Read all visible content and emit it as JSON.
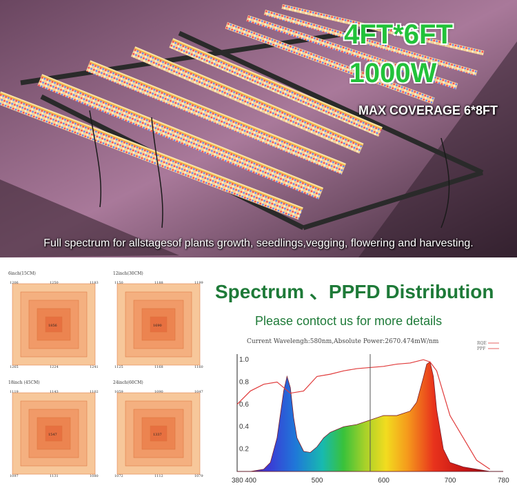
{
  "hero": {
    "title": "4FT*6FT",
    "power": "1000W",
    "coverage": "MAX COVERAGE 6*8FT",
    "caption": "Full spectrum for allstagesof plants growth, seedlings,vegging, flowering and harvesting."
  },
  "spectrum": {
    "title": "Spectrum 、PPFD Distribution",
    "subtitle": "Please contoct us for more details"
  },
  "ppfd_panels": [
    {
      "label": "6inch(15CM)",
      "corners": [
        "1206",
        "1250",
        "1183",
        "1265",
        "1224",
        "1241"
      ],
      "center": "1856"
    },
    {
      "label": "12inch(30CM)",
      "corners": [
        "1150",
        "1188",
        "1199",
        "1125",
        "1168",
        "1160"
      ],
      "center": "1690"
    },
    {
      "label": "18inch (45CM)",
      "corners": [
        "1119",
        "1143",
        "1102",
        "1097",
        "1131",
        "1080"
      ],
      "center": "1547"
    },
    {
      "label": "24inch(60CM)",
      "corners": [
        "1059",
        "1090",
        "1047",
        "1072",
        "1112",
        "1079"
      ],
      "center": "1337"
    }
  ],
  "chart_data": {
    "type": "line",
    "note": "Current Wavelengh:580nm,Absolute Power:2670.474mW/nm",
    "x_ticks": [
      "380",
      "400",
      "500",
      "600",
      "700",
      "780"
    ],
    "y_ticks": [
      "1.0",
      "0.8",
      "0.6",
      "0.4",
      "0.2"
    ],
    "xlim": [
      380,
      780
    ],
    "ylim": [
      0,
      1.05
    ],
    "legend": [
      "RQE",
      "PPF"
    ],
    "marker_x": 580,
    "spectrum": {
      "x": [
        380,
        400,
        420,
        430,
        440,
        450,
        455,
        460,
        465,
        470,
        480,
        490,
        500,
        510,
        520,
        540,
        560,
        580,
        600,
        620,
        640,
        650,
        660,
        665,
        670,
        675,
        680,
        690,
        700,
        720,
        740,
        760,
        780
      ],
      "y": [
        0.0,
        0.0,
        0.02,
        0.08,
        0.3,
        0.72,
        0.85,
        0.75,
        0.48,
        0.3,
        0.18,
        0.17,
        0.22,
        0.3,
        0.35,
        0.4,
        0.42,
        0.46,
        0.5,
        0.5,
        0.54,
        0.62,
        0.84,
        0.96,
        0.98,
        0.85,
        0.55,
        0.2,
        0.08,
        0.04,
        0.02,
        0.0,
        0.0
      ]
    },
    "rqe": {
      "x": [
        380,
        400,
        420,
        440,
        460,
        480,
        500,
        520,
        540,
        560,
        580,
        600,
        620,
        640,
        660,
        670,
        680,
        690,
        700,
        720,
        740,
        760
      ],
      "y": [
        0.6,
        0.72,
        0.78,
        0.8,
        0.7,
        0.72,
        0.85,
        0.87,
        0.9,
        0.92,
        0.93,
        0.94,
        0.96,
        0.97,
        1.0,
        0.98,
        0.9,
        0.7,
        0.5,
        0.3,
        0.1,
        0.02
      ]
    }
  }
}
